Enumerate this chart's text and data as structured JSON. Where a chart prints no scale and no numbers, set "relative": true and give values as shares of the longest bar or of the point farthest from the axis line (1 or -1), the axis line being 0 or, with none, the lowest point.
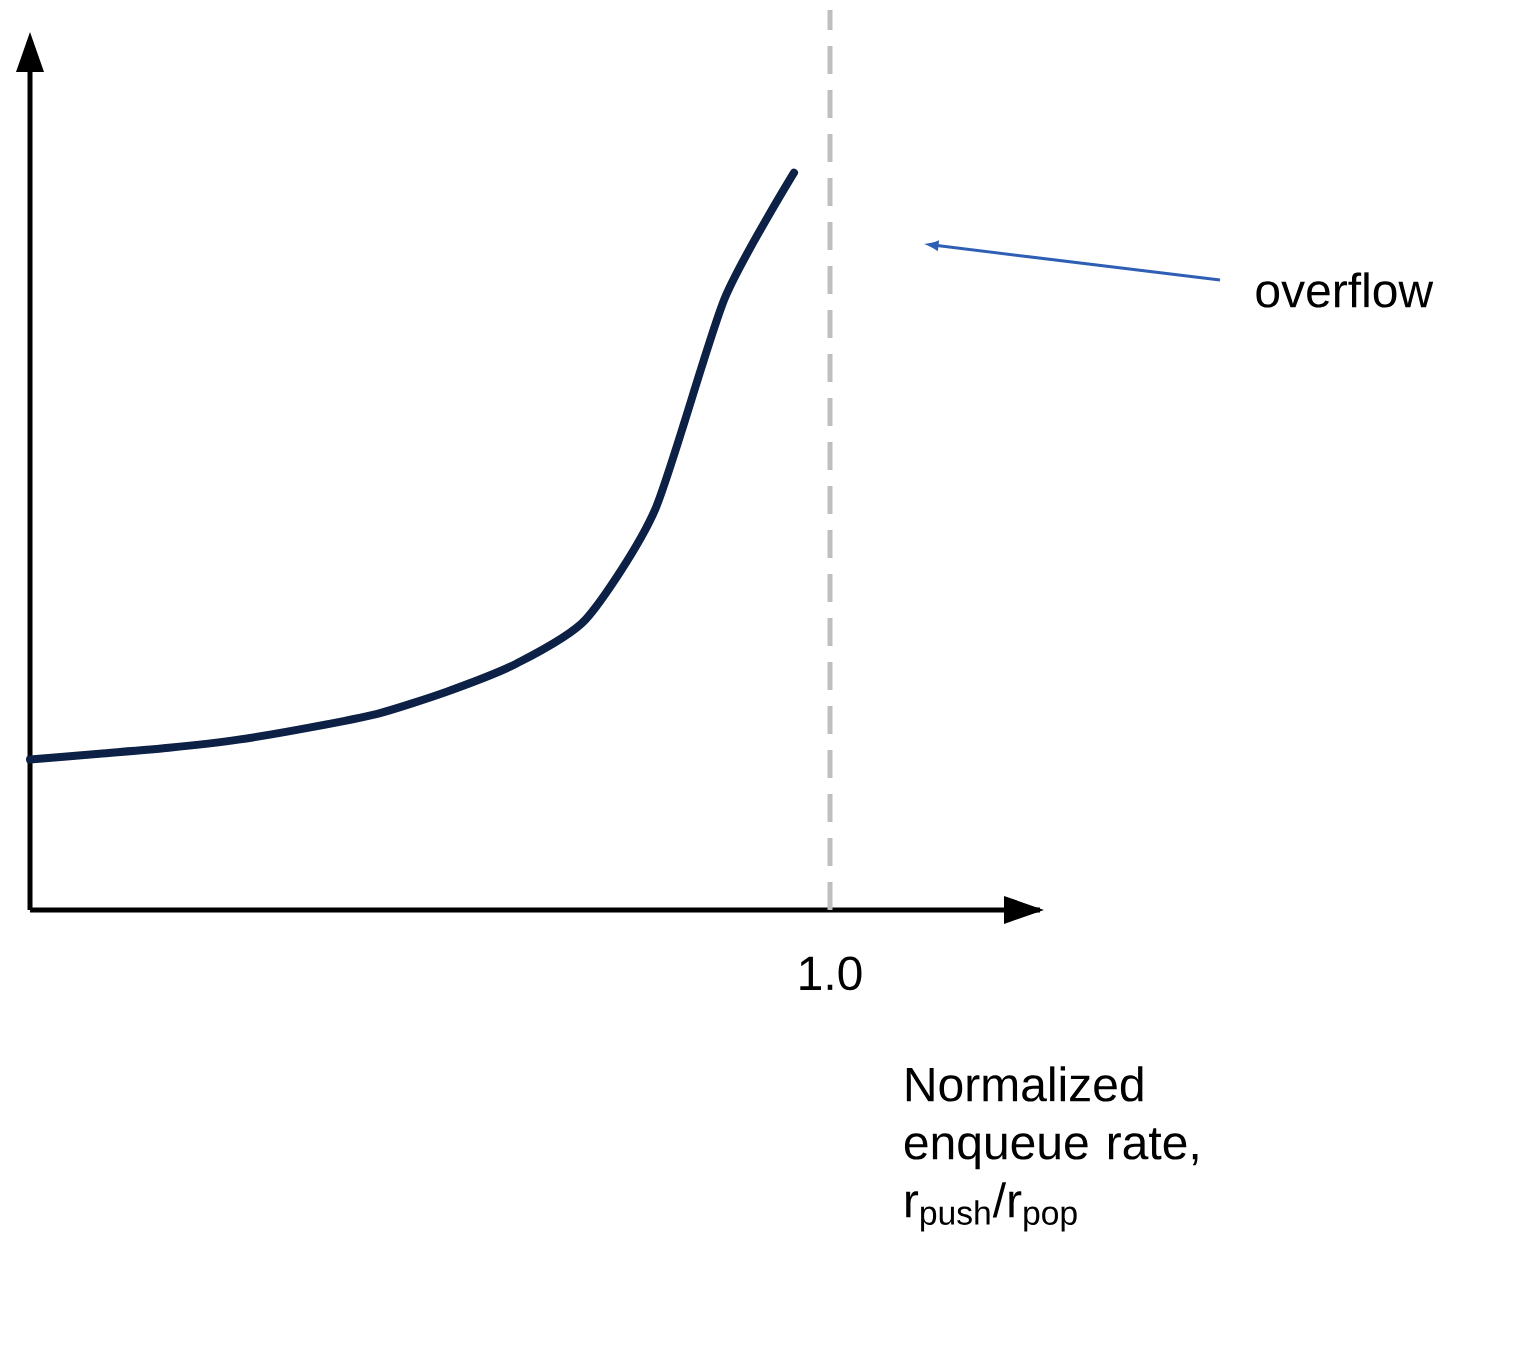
{
  "chart_data": {
    "type": "line",
    "relative": true,
    "xlabel": "Normalized enqueue rate, r$_{push}$/r$_{pop}$",
    "categories": [
      null,
      null,
      null,
      null,
      null,
      null,
      null,
      null,
      null,
      null,
      null,
      null
    ],
    "values": [
      0.204,
      0.212,
      0.22,
      0.231,
      0.247,
      0.266,
      0.296,
      0.334,
      0.394,
      0.543,
      0.829,
      1.0
    ],
    "color": "#0d2146",
    "annotations": [
      "overflow",
      "1.0"
    ]
  }
}
